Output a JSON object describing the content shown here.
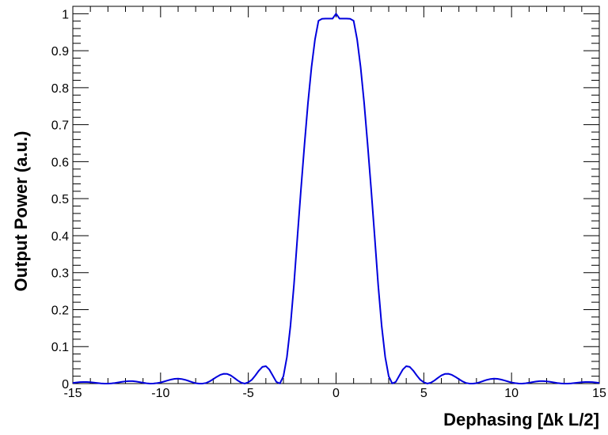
{
  "chart_data": {
    "type": "line",
    "title": "",
    "xlabel": "Dephasing [∆k L/2]",
    "ylabel": "Output Power (a.u.)",
    "xlim": [
      -15,
      15
    ],
    "ylim": [
      0,
      1.02
    ],
    "x_ticks": [
      -15,
      -10,
      -5,
      0,
      5,
      10,
      15
    ],
    "x_tick_labels": [
      "-15",
      "-10",
      "-5",
      "0",
      "5",
      "10",
      "15"
    ],
    "y_ticks": [
      0,
      0.1,
      0.2,
      0.3,
      0.4,
      0.5,
      0.6,
      0.7,
      0.8,
      0.9,
      1
    ],
    "y_tick_labels": [
      "0",
      "0.1",
      "0.2",
      "0.3",
      "0.4",
      "0.5",
      "0.6",
      "0.7",
      "0.8",
      "0.9",
      "1"
    ],
    "grid": false,
    "series": [
      {
        "color": "#0000dd",
        "x": [
          -15,
          -14.8,
          -14.6,
          -14.4,
          -14.2,
          -14,
          -13.8,
          -13.6,
          -13.4,
          -13.2,
          -13,
          -12.8,
          -12.6,
          -12.4,
          -12.2,
          -12,
          -11.8,
          -11.6,
          -11.4,
          -11.2,
          -11,
          -10.8,
          -10.6,
          -10.4,
          -10.2,
          -10,
          -9.8,
          -9.6,
          -9.4,
          -9.2,
          -9,
          -8.8,
          -8.6,
          -8.4,
          -8.2,
          -8,
          -7.8,
          -7.6,
          -7.4,
          -7.2,
          -7,
          -6.8,
          -6.6,
          -6.4,
          -6.2,
          -6,
          -5.8,
          -5.6,
          -5.4,
          -5.2,
          -5,
          -4.8,
          -4.6,
          -4.4,
          -4.2,
          -4,
          -3.8,
          -3.6,
          -3.4,
          -3.2,
          -3,
          -2.8,
          -2.6,
          -2.4,
          -2.2,
          -2,
          -1.8,
          -1.6,
          -1.4,
          -1.2,
          -1,
          -0.8,
          -0.6,
          -0.4,
          -0.2,
          0,
          0.2,
          0.4,
          0.6,
          0.8,
          1,
          1.2,
          1.4,
          1.6,
          1.8,
          2,
          2.2,
          2.4,
          2.6,
          2.8,
          3,
          3.2,
          3.4,
          3.6,
          3.8,
          4,
          4.2,
          4.4,
          4.6,
          4.8,
          5,
          5.2,
          5.4,
          5.6,
          5.8,
          6,
          6.2,
          6.4,
          6.6,
          6.8,
          7,
          7.2,
          7.4,
          7.6,
          7.8,
          8,
          8.2,
          8.4,
          8.6,
          8.8,
          9,
          9.2,
          9.4,
          9.6,
          9.8,
          10,
          10.2,
          10.4,
          10.6,
          10.8,
          11,
          11.2,
          11.4,
          11.6,
          11.8,
          12,
          12.2,
          12.4,
          12.6,
          12.8,
          13,
          13.2,
          13.4,
          13.6,
          13.8,
          14,
          14.2,
          14.4,
          14.6,
          14.8,
          15
        ],
        "y": [
          0.0019,
          0.003,
          0.0039,
          0.0044,
          0.0043,
          0.0038,
          0.0027,
          0.0016,
          0.0006,
          0.0001,
          0.0,
          0.0006,
          0.0017,
          0.0032,
          0.0047,
          0.006,
          0.0067,
          0.0066,
          0.0057,
          0.0041,
          0.0024,
          0.0008,
          0.0001,
          0.0002,
          0.0014,
          0.003,
          0.0056,
          0.0084,
          0.011,
          0.0128,
          0.0134,
          0.0124,
          0.0102,
          0.0072,
          0.0038,
          0.0011,
          0.0,
          0.0001,
          0.0017,
          0.0062,
          0.012,
          0.0183,
          0.0236,
          0.0265,
          0.0261,
          0.022,
          0.0154,
          0.0082,
          0.0024,
          0.0,
          0.0035,
          0.0103,
          0.0219,
          0.035,
          0.0451,
          0.0471,
          0.0378,
          0.0211,
          0.0044,
          0.0005,
          0.0199,
          0.0719,
          0.1555,
          0.2669,
          0.3976,
          0.5254,
          0.646,
          0.7589,
          0.8553,
          0.9307,
          0.9811,
          0.9863,
          0.9868,
          0.9868,
          0.9868,
          1.0,
          0.9868,
          0.9868,
          0.9868,
          0.9863,
          0.9811,
          0.9307,
          0.8553,
          0.7589,
          0.646,
          0.5254,
          0.3976,
          0.2669,
          0.1555,
          0.0719,
          0.0199,
          0.0005,
          0.0044,
          0.0211,
          0.0378,
          0.0471,
          0.0451,
          0.035,
          0.0219,
          0.0103,
          0.0035,
          0.0,
          0.0024,
          0.0082,
          0.0154,
          0.022,
          0.0261,
          0.0265,
          0.0236,
          0.0183,
          0.012,
          0.0062,
          0.0017,
          0.0001,
          0.0,
          0.0011,
          0.0038,
          0.0072,
          0.0102,
          0.0124,
          0.0134,
          0.0128,
          0.011,
          0.0084,
          0.0056,
          0.003,
          0.0014,
          0.0002,
          0.0001,
          0.0008,
          0.0024,
          0.0041,
          0.0057,
          0.0066,
          0.0067,
          0.006,
          0.0047,
          0.0032,
          0.0017,
          0.0006,
          0.0,
          0.0001,
          0.0006,
          0.0016,
          0.0027,
          0.0038,
          0.0043,
          0.0044,
          0.0039,
          0.003,
          0.0019
        ]
      }
    ]
  }
}
